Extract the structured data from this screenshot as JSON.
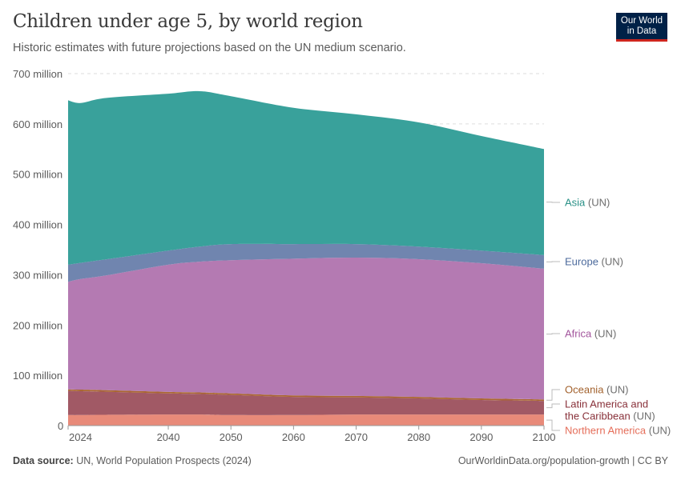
{
  "header": {
    "title": "Children under age 5, by world region",
    "subtitle": "Historic estimates with future projections based on the UN medium scenario.",
    "logo": "Our World in Data"
  },
  "footer": {
    "source_label": "Data source:",
    "source": "UN, World Population Prospects (2024)",
    "link": "OurWorldinData.org/population-growth | CC BY"
  },
  "chart_data": {
    "type": "area",
    "stacked": true,
    "title": "Children under age 5, by world region",
    "xlabel": "",
    "ylabel": "",
    "xlim": [
      2024,
      2100
    ],
    "ylim": [
      0,
      700
    ],
    "grid": true,
    "legend": "right, inline labels",
    "x_ticks": [
      "2024",
      "2040",
      "2050",
      "2060",
      "2070",
      "2080",
      "2090",
      "2100"
    ],
    "y_ticks": [
      "0",
      "100 million",
      "200 million",
      "300 million",
      "400 million",
      "500 million",
      "600 million",
      "700 million"
    ],
    "x": [
      2024,
      2026,
      2030,
      2040,
      2045,
      2050,
      2060,
      2070,
      2080,
      2090,
      2100
    ],
    "series": [
      {
        "name": "Northern America",
        "suffix": "(UN)",
        "color": "#e88876",
        "label_color": "#e56e5a",
        "values": [
          21,
          21,
          21.5,
          22,
          22,
          21,
          21,
          22,
          22,
          22,
          22
        ]
      },
      {
        "name": "Latin America and the Caribbean",
        "suffix": "(UN)",
        "color": "#9f5662",
        "label_color": "#883039",
        "values": [
          48,
          47.5,
          46,
          42,
          41,
          40,
          36,
          34,
          32,
          29,
          27
        ]
      },
      {
        "name": "Oceania",
        "suffix": "(UN)",
        "color": "#a8642f",
        "label_color": "#a2612c",
        "values": [
          3,
          3,
          3,
          3,
          3,
          3,
          3,
          3,
          3,
          3,
          3
        ]
      },
      {
        "name": "Africa",
        "suffix": "(UN)",
        "color": "#b277b0",
        "label_color": "#a2559c",
        "values": [
          214,
          220,
          228,
          253,
          260,
          265,
          272,
          275,
          274,
          269,
          260
        ]
      },
      {
        "name": "Europe",
        "suffix": "(UN)",
        "color": "#6d83ad",
        "label_color": "#4c6a9c",
        "values": [
          34,
          32,
          32,
          28,
          30,
          32,
          29,
          27,
          25,
          25,
          27
        ]
      },
      {
        "name": "Asia",
        "suffix": "(UN)",
        "color": "#359f99",
        "label_color": "#2a9187",
        "values": [
          327,
          318,
          321,
          312,
          309,
          294,
          271,
          258,
          247,
          228,
          211
        ]
      }
    ]
  }
}
